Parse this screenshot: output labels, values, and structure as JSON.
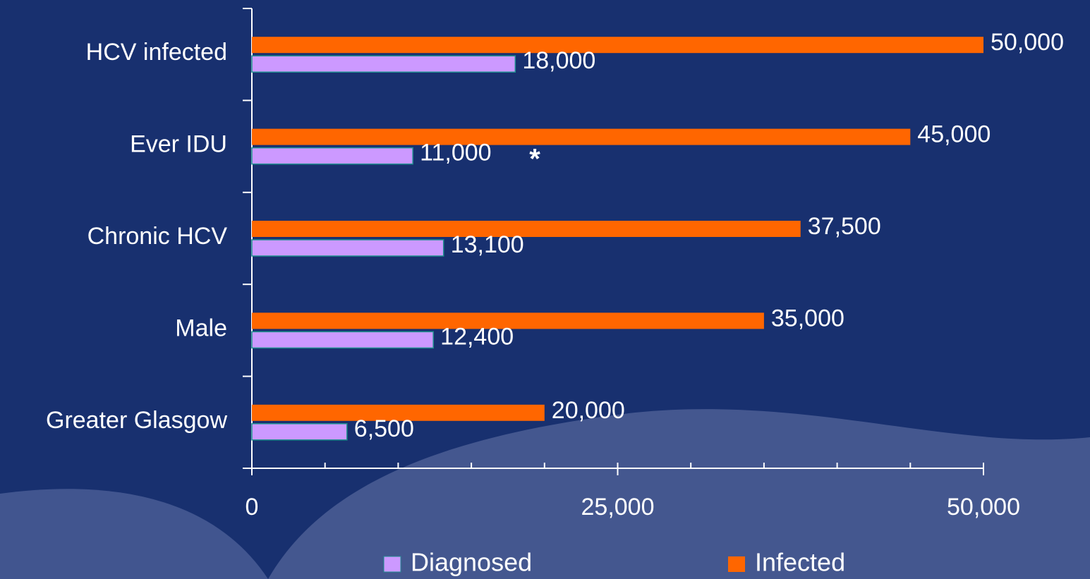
{
  "chart_data": {
    "type": "hbar",
    "categories": [
      "HCV infected",
      "Ever IDU",
      "Chronic HCV",
      "Male",
      "Greater Glasgow"
    ],
    "series": [
      {
        "name": "Infected",
        "color": "#ff6600",
        "values": [
          50000,
          45000,
          37500,
          35000,
          20000
        ],
        "value_labels": [
          "50,000",
          "45,000",
          "37,500",
          "35,000",
          "20,000"
        ]
      },
      {
        "name": "Diagnosed",
        "color": "#cc99ff",
        "values": [
          18000,
          11000,
          13100,
          12400,
          6500
        ],
        "value_labels": [
          "18,000",
          "11,000",
          "13,100",
          "12,400",
          "6,500"
        ]
      }
    ],
    "annotations": [
      {
        "text": "*"
      }
    ],
    "xlim": [
      0,
      50000
    ],
    "xticks": [
      0,
      {
        "value": 25000,
        "label": "25,000"
      },
      {
        "value": 50000,
        "label": "50,000"
      }
    ],
    "minor_xticks": [
      5000,
      10000,
      15000,
      20000,
      30000,
      35000,
      40000,
      45000
    ],
    "legend": "bottom"
  }
}
